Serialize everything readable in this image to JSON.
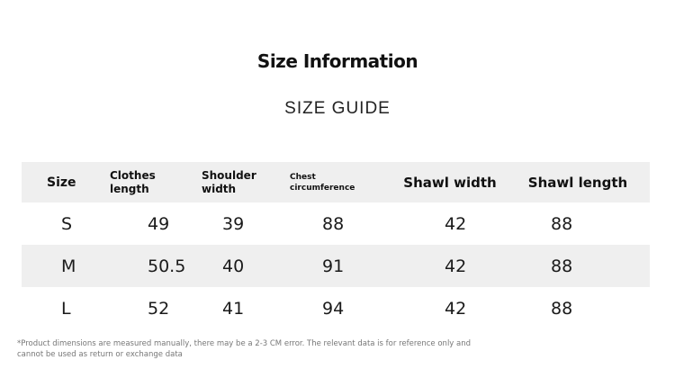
{
  "header": {
    "title": "Size Information",
    "subtitle": "SIZE GUIDE"
  },
  "table": {
    "columns": [
      {
        "line1": "Size",
        "line2": ""
      },
      {
        "line1": "Clothes",
        "line2": "length"
      },
      {
        "line1": "Shoulder",
        "line2": "width"
      },
      {
        "line1": "Chest",
        "line2": "circumference"
      },
      {
        "line1": "Shawl width",
        "line2": ""
      },
      {
        "line1": "Shawl length",
        "line2": ""
      }
    ],
    "rows": [
      {
        "size": "S",
        "clothes_length": "49",
        "shoulder_width": "39",
        "chest_circumference": "88",
        "shawl_width": "42",
        "shawl_length": "88"
      },
      {
        "size": "M",
        "clothes_length": "50.5",
        "shoulder_width": "40",
        "chest_circumference": "91",
        "shawl_width": "42",
        "shawl_length": "88"
      },
      {
        "size": "L",
        "clothes_length": "52",
        "shoulder_width": "41",
        "chest_circumference": "94",
        "shawl_width": "42",
        "shawl_length": "88"
      }
    ]
  },
  "footnote": {
    "line1": "*Product dimensions are measured manually, there may be a 2-3 CM error. The relevant data is for reference only and",
    "line2": "cannot be used as return or exchange data"
  },
  "colors": {
    "band": "#efefef",
    "text": "#1a1a1a",
    "footnote": "#777777"
  }
}
